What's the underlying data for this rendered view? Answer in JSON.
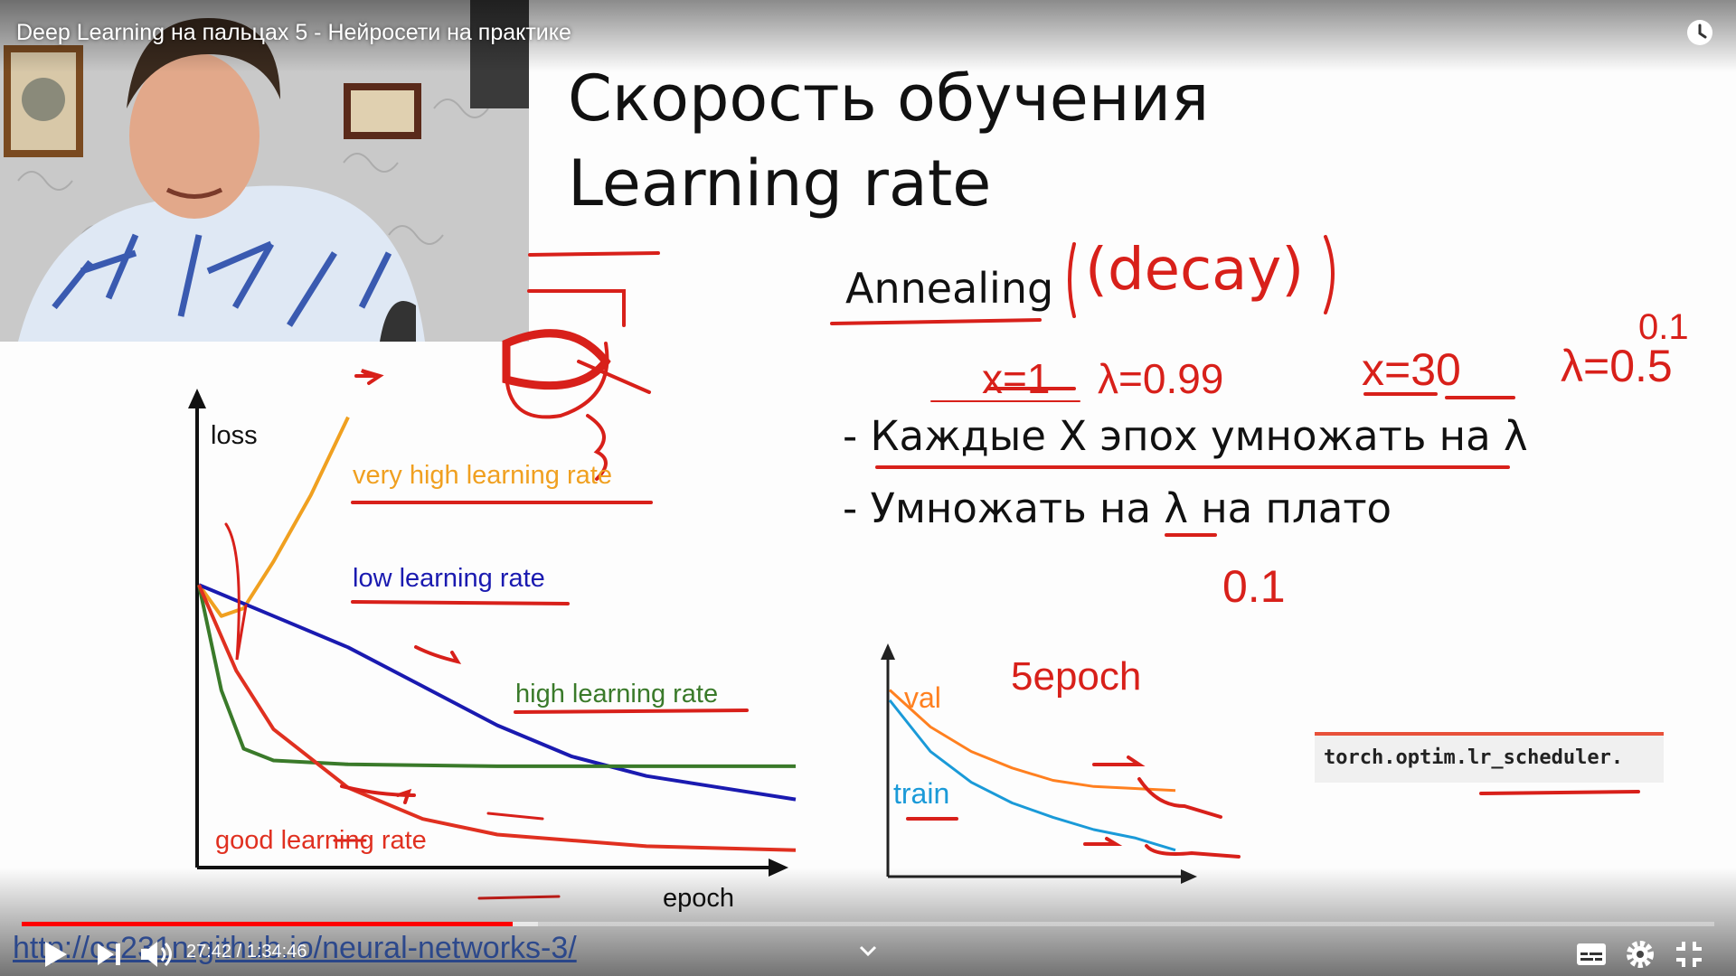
{
  "player": {
    "video_title": "Deep Learning на пальцах 5 - Нейросети на практике",
    "time_current": "27:42",
    "time_separator": " / ",
    "time_total": "1:34:46",
    "played_fraction": 0.29,
    "buffered_fraction": 0.305,
    "icons": [
      "play-icon",
      "next-icon",
      "volume-icon",
      "watch-later-icon",
      "subtitles-icon",
      "settings-icon",
      "exit-fullscreen-icon",
      "chevron-down-icon"
    ],
    "progress_color": "#ff0000"
  },
  "slide": {
    "title_line1": "Скорость обучения",
    "title_line2": "Learning rate",
    "annealing_label": "Annealing",
    "bullet1": "-  Каждые X эпох умножать на λ",
    "bullet2": "-  Умножать на λ на плато",
    "code": "torch.optim.lr_scheduler.",
    "link": "http://cs231n.github.io/neural-networks-3/"
  },
  "handwriting": {
    "decay": "(decay)",
    "x1": "x=1",
    "lambda1": "λ=0.99",
    "x30": "x=30",
    "lambda2": "λ=0.5",
    "top_right": "0.1",
    "mid_value": "0.1",
    "epochs_note": "5epoch",
    "val_label": "val",
    "train_label": "train"
  },
  "chart_data": [
    {
      "type": "line",
      "ylabel": "loss",
      "xlabel": "epoch",
      "series": [
        {
          "name": "very high learning rate",
          "color": "#f0a020",
          "x": [
            0,
            3,
            6,
            10,
            15,
            20
          ],
          "y": [
            0.72,
            0.64,
            0.66,
            0.78,
            0.95,
            1.15
          ]
        },
        {
          "name": "low learning rate",
          "color": "#1a1ab0",
          "x": [
            0,
            10,
            20,
            30,
            40,
            50,
            60,
            70,
            80
          ],
          "y": [
            0.72,
            0.64,
            0.56,
            0.46,
            0.36,
            0.28,
            0.23,
            0.2,
            0.17
          ]
        },
        {
          "name": "high learning rate",
          "color": "#3a7a2a",
          "x": [
            0,
            3,
            6,
            10,
            20,
            40,
            60,
            80
          ],
          "y": [
            0.72,
            0.45,
            0.3,
            0.27,
            0.26,
            0.255,
            0.255,
            0.255
          ]
        },
        {
          "name": "good learning rate",
          "color": "#e03020",
          "x": [
            0,
            5,
            10,
            20,
            30,
            40,
            60,
            80
          ],
          "y": [
            0.72,
            0.5,
            0.35,
            0.2,
            0.12,
            0.08,
            0.05,
            0.04
          ]
        }
      ]
    },
    {
      "type": "line",
      "series": [
        {
          "name": "val",
          "color": "#ff8020",
          "x": [
            0,
            10,
            20,
            30,
            40,
            50,
            60,
            70
          ],
          "y": [
            0.9,
            0.72,
            0.6,
            0.52,
            0.46,
            0.43,
            0.42,
            0.41
          ]
        },
        {
          "name": "train",
          "color": "#1a9ad8",
          "x": [
            0,
            10,
            20,
            30,
            40,
            50,
            60,
            70
          ],
          "y": [
            0.85,
            0.6,
            0.45,
            0.35,
            0.28,
            0.22,
            0.18,
            0.12
          ]
        }
      ]
    }
  ]
}
